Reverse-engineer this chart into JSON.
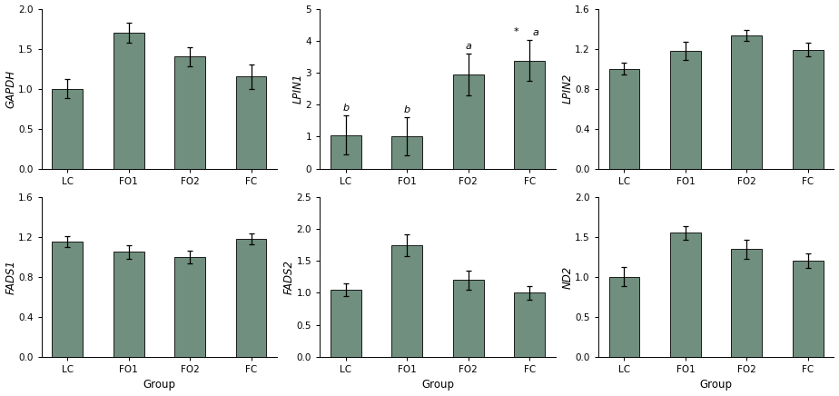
{
  "groups": [
    "LC",
    "FO1",
    "FO2",
    "FC"
  ],
  "subplots": [
    {
      "ylabel": "GAPDH",
      "values": [
        1.0,
        1.7,
        1.4,
        1.15
      ],
      "errors": [
        0.12,
        0.13,
        0.12,
        0.15
      ],
      "ylim": [
        0,
        2.0
      ],
      "yticks": [
        0.0,
        0.5,
        1.0,
        1.5,
        2.0
      ],
      "annotations": [
        null,
        null,
        null,
        null
      ],
      "star_annotations": [
        null,
        null,
        null,
        null
      ],
      "row": 0,
      "col": 0
    },
    {
      "ylabel": "LPIN1",
      "values": [
        1.05,
        1.0,
        2.95,
        3.38
      ],
      "errors": [
        0.6,
        0.6,
        0.65,
        0.65
      ],
      "ylim": [
        0,
        5
      ],
      "yticks": [
        0,
        1,
        2,
        3,
        4,
        5
      ],
      "annotations": [
        "b",
        "b",
        "a",
        "a"
      ],
      "star_annotations": [
        null,
        null,
        null,
        "*"
      ],
      "row": 0,
      "col": 1
    },
    {
      "ylabel": "LPIN2",
      "values": [
        1.0,
        1.18,
        1.33,
        1.19
      ],
      "errors": [
        0.055,
        0.09,
        0.055,
        0.065
      ],
      "ylim": [
        0,
        1.6
      ],
      "yticks": [
        0,
        0.4,
        0.8,
        1.2,
        1.6
      ],
      "annotations": [
        null,
        null,
        null,
        null
      ],
      "star_annotations": [
        null,
        null,
        null,
        null
      ],
      "row": 0,
      "col": 2
    },
    {
      "ylabel": "FADS1",
      "values": [
        1.15,
        1.05,
        1.0,
        1.18
      ],
      "errors": [
        0.055,
        0.065,
        0.065,
        0.055
      ],
      "ylim": [
        0,
        1.6
      ],
      "yticks": [
        0,
        0.4,
        0.8,
        1.2,
        1.6
      ],
      "annotations": [
        null,
        null,
        null,
        null
      ],
      "star_annotations": [
        null,
        null,
        null,
        null
      ],
      "row": 1,
      "col": 0
    },
    {
      "ylabel": "FADS2",
      "values": [
        1.05,
        1.75,
        1.2,
        1.0
      ],
      "errors": [
        0.1,
        0.17,
        0.15,
        0.11
      ],
      "ylim": [
        0.0,
        2.5
      ],
      "yticks": [
        0.0,
        0.5,
        1.0,
        1.5,
        2.0,
        2.5
      ],
      "annotations": [
        null,
        null,
        null,
        null
      ],
      "star_annotations": [
        null,
        null,
        null,
        null
      ],
      "row": 1,
      "col": 1
    },
    {
      "ylabel": "ND2",
      "values": [
        1.0,
        1.55,
        1.35,
        1.2
      ],
      "errors": [
        0.12,
        0.09,
        0.12,
        0.09
      ],
      "ylim": [
        0,
        2.0
      ],
      "yticks": [
        0.0,
        0.5,
        1.0,
        1.5,
        2.0
      ],
      "annotations": [
        null,
        null,
        null,
        null
      ],
      "star_annotations": [
        null,
        null,
        null,
        null
      ],
      "row": 1,
      "col": 2
    }
  ],
  "bar_color": "#708f7e",
  "bar_edge_color": "#1a1a1a",
  "bar_linewidth": 0.7,
  "bar_width": 0.5,
  "xlabel": "Group",
  "background_color": "#ffffff",
  "tick_labelsize": 7.5,
  "ylabel_fontsize": 8.5,
  "xlabel_fontsize": 8.5,
  "ann_fontsize": 8.0
}
